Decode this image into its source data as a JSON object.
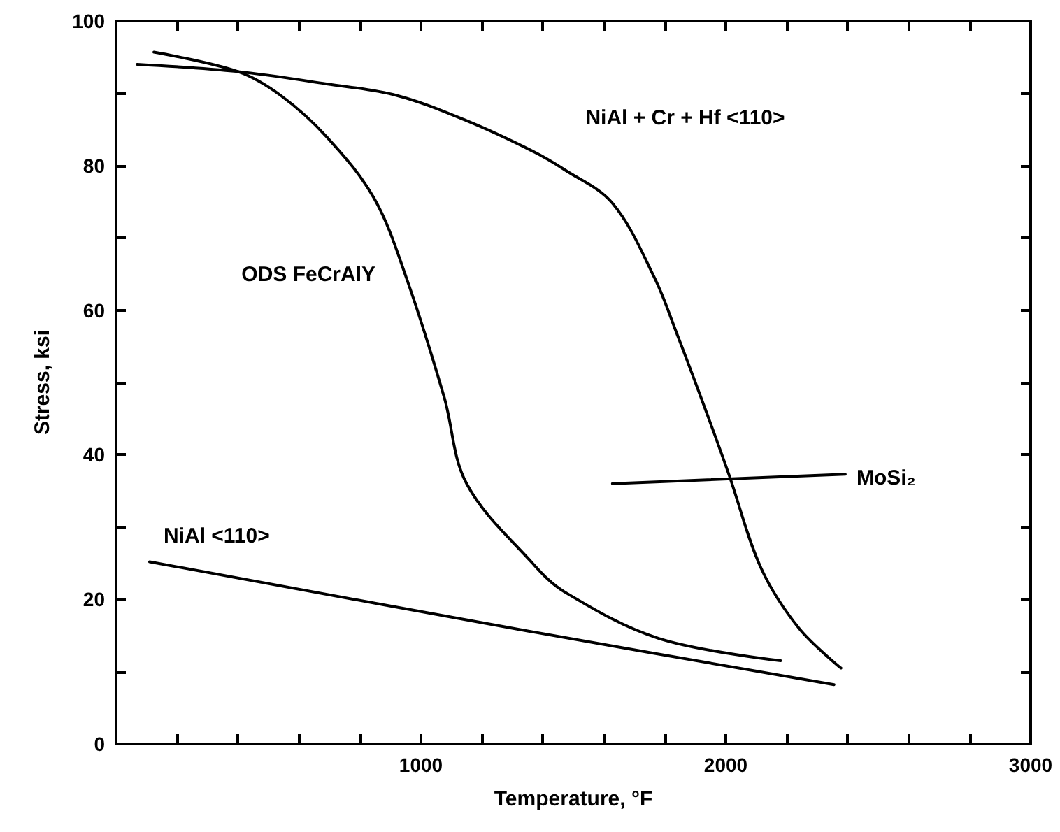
{
  "chart_data": {
    "type": "line",
    "xlabel": "Temperature, °F",
    "ylabel": "Stress, ksi",
    "xlim": [
      0,
      3000
    ],
    "xticks": [
      {
        "value": 200,
        "label": null
      },
      {
        "value": 400,
        "label": null
      },
      {
        "value": 600,
        "label": null
      },
      {
        "value": 800,
        "label": null
      },
      1000,
      {
        "value": 1200,
        "label": null
      },
      {
        "value": 1400,
        "label": null
      },
      {
        "value": 1600,
        "label": null
      },
      {
        "value": 1800,
        "label": null
      },
      2000,
      {
        "value": 2200,
        "label": null
      },
      {
        "value": 2400,
        "label": null
      },
      {
        "value": 2600,
        "label": null
      },
      {
        "value": 2800,
        "label": null
      },
      3000
    ],
    "ylim": [
      0,
      100
    ],
    "yticks": [
      0,
      {
        "value": 10,
        "label": null
      },
      20,
      {
        "value": 30,
        "label": null
      },
      40,
      {
        "value": 50,
        "label": null
      },
      60,
      {
        "value": 70,
        "label": null
      },
      80,
      {
        "value": 90,
        "label": null
      },
      100
    ],
    "grid": false,
    "marker": "none",
    "line_style": "solid",
    "series": [
      {
        "name": "ODS FeCrAlY",
        "color": "#000000",
        "x": [
          124,
          400,
          540,
          690,
          846,
          952,
          1076,
          1150,
          1366,
          1472,
          1780,
          2180
        ],
        "values": [
          95.7,
          93,
          89.7,
          84,
          75.5,
          64.5,
          48,
          36,
          25,
          21,
          14.6,
          11.5
        ]
      },
      {
        "name": "NiAl + Cr + Hf <110>",
        "color": "#000000",
        "x": [
          69,
          400,
          690,
          920,
          1150,
          1366,
          1472,
          1628,
          1766,
          1840,
          1932,
          2010,
          2116,
          2240,
          2378
        ],
        "values": [
          94,
          93,
          91.3,
          89.7,
          86.2,
          82,
          79.4,
          74.8,
          64.5,
          56.7,
          46.4,
          37.3,
          24.3,
          16,
          10.5
        ]
      },
      {
        "name": "MoSi₂",
        "color": "#000000",
        "x": [
          1628,
          2392
        ],
        "values": [
          36,
          37.3
        ]
      },
      {
        "name": "NiAl <110>",
        "color": "#000000",
        "x": [
          110,
          1366,
          2355
        ],
        "values": [
          25.2,
          15.5,
          8.2
        ]
      }
    ]
  }
}
